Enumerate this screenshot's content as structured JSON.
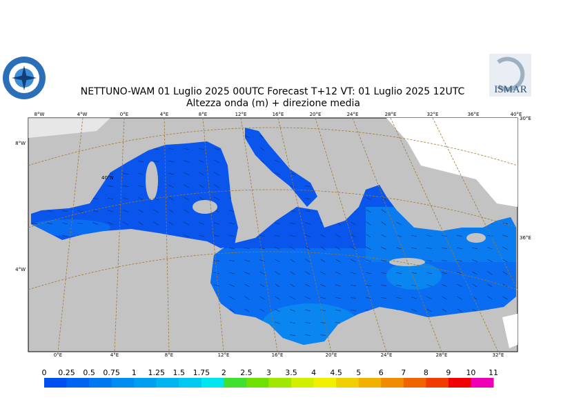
{
  "header": {
    "title": "NETTUNO-WAM  01  Luglio   2025 00UTC Forecast T+12 VT: 01  Luglio   2025 12UTC",
    "subtitle": "Altezza onda (m) + direzione media",
    "logo_right": "ISMAR"
  },
  "map": {
    "top_labels": [
      "8°W",
      "4°W",
      "0°E",
      "4°E",
      "8°E",
      "12°E",
      "16°E",
      "20°E",
      "24°E",
      "28°E",
      "32°E",
      "36°E",
      "40°E"
    ],
    "bottom_labels": [
      "0°E",
      "4°E",
      "8°E",
      "12°E",
      "16°E",
      "20°E",
      "24°E",
      "28°E",
      "32°E"
    ],
    "left_labels": [
      "8°W",
      "4°W"
    ],
    "right_labels": [
      "30°E",
      "36°E"
    ],
    "inner_label": "40°N"
  },
  "legend": {
    "labels": [
      "0",
      "0.25",
      "0.5",
      "0.75",
      "1",
      "1.25",
      "1.5",
      "1.75",
      "2",
      "2.5",
      "3",
      "3.5",
      "4",
      "4.5",
      "5",
      "6",
      "7",
      "8",
      "9",
      "10",
      "11"
    ],
    "colors": [
      "#0050f0",
      "#0064f0",
      "#0078f0",
      "#008cf0",
      "#00a0f0",
      "#00b4f0",
      "#00c8f0",
      "#00e6f0",
      "#40e030",
      "#70e000",
      "#a0e800",
      "#d0f000",
      "#f0f000",
      "#f0d000",
      "#f0b000",
      "#f08c00",
      "#f06400",
      "#f03c00",
      "#f00000",
      "#f000b4"
    ]
  }
}
